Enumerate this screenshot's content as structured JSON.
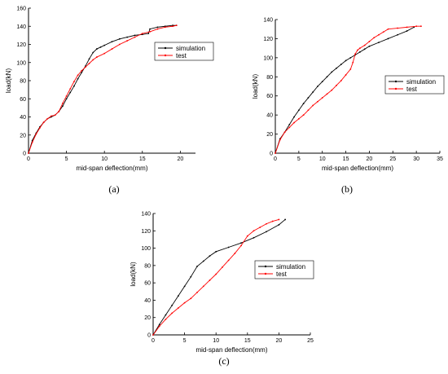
{
  "colors": {
    "simulation": "#000000",
    "test": "#ff0000"
  },
  "chart_data": [
    {
      "type": "line",
      "panel_label": "(a)",
      "xlabel": "mid-span deflection(mm)",
      "ylabel": "load(kN)",
      "xlim": [
        0,
        22
      ],
      "ylim": [
        0,
        160
      ],
      "xticks": [
        0,
        5,
        10,
        15,
        20
      ],
      "yticks": [
        0,
        20,
        40,
        60,
        80,
        100,
        120,
        140,
        160
      ],
      "legend_placement": "upper-right",
      "series": [
        {
          "name": "simulation",
          "color_key": "simulation",
          "x": [
            0,
            0.5,
            1,
            1.5,
            2,
            2.5,
            3,
            3.5,
            4,
            4.5,
            5,
            5.5,
            6,
            6.5,
            7,
            7.5,
            8,
            8.5,
            9,
            9.5,
            10,
            11,
            12,
            13,
            14,
            15,
            15.8,
            16,
            17,
            18,
            19,
            19.5
          ],
          "y": [
            0,
            14,
            22,
            29,
            34,
            38,
            40,
            42,
            46,
            52,
            60,
            67,
            74,
            82,
            89,
            96,
            104,
            111,
            115,
            117,
            119,
            123,
            126,
            128,
            130,
            131,
            132,
            137,
            139,
            140,
            141,
            141
          ]
        },
        {
          "name": "test",
          "color_key": "test",
          "x": [
            0,
            0.5,
            1,
            1.5,
            2,
            2.5,
            3,
            3.5,
            4,
            4.5,
            5,
            5.5,
            6,
            6.5,
            7,
            7.5,
            8,
            8.5,
            9,
            10,
            11,
            12,
            13,
            14,
            15,
            16,
            17,
            18,
            19,
            19.5
          ],
          "y": [
            0,
            12,
            21,
            28,
            34,
            38,
            41,
            42,
            46,
            55,
            63,
            71,
            79,
            86,
            91,
            95,
            99,
            103,
            106,
            110,
            115,
            120,
            124,
            128,
            132,
            134,
            137,
            139,
            140,
            141
          ]
        }
      ]
    },
    {
      "type": "line",
      "panel_label": "(b)",
      "xlabel": "mid-span deflection(mm)",
      "ylabel": "load(kN)",
      "xlim": [
        0,
        35
      ],
      "ylim": [
        0,
        140
      ],
      "xticks": [
        0,
        5,
        10,
        15,
        20,
        25,
        30,
        35
      ],
      "yticks": [
        0,
        20,
        40,
        60,
        80,
        100,
        120,
        140
      ],
      "legend_placement": "right",
      "series": [
        {
          "name": "simulation",
          "color_key": "simulation",
          "x": [
            0,
            1,
            2,
            3,
            4,
            5,
            6,
            7,
            8,
            9,
            10,
            11,
            12,
            13,
            14,
            15,
            16,
            17,
            18,
            19,
            20,
            22,
            24,
            26,
            28,
            29.5
          ],
          "y": [
            0,
            15,
            22,
            30,
            38,
            45,
            52,
            58,
            64,
            70,
            75,
            80,
            85,
            89,
            93,
            97,
            100,
            103,
            106,
            109,
            112,
            116,
            120,
            124,
            128,
            132
          ]
        },
        {
          "name": "test",
          "color_key": "test",
          "x": [
            0,
            1,
            2,
            3,
            4,
            5,
            6,
            7,
            8,
            9,
            10,
            11,
            12,
            13,
            14,
            15,
            16,
            16.5,
            17,
            17.5,
            18,
            19,
            20,
            21,
            22,
            23,
            24,
            26,
            28,
            30,
            31
          ],
          "y": [
            0,
            14,
            22,
            27,
            32,
            36,
            40,
            45,
            50,
            54,
            58,
            62,
            66,
            71,
            76,
            82,
            88,
            95,
            104,
            108,
            110,
            113,
            117,
            121,
            124,
            127,
            130,
            131,
            132,
            133,
            133
          ]
        }
      ]
    },
    {
      "type": "line",
      "panel_label": "(c)",
      "xlabel": "mid-span deflection(mm)",
      "ylabel": "load(kN)",
      "xlim": [
        0,
        25
      ],
      "ylim": [
        0,
        140
      ],
      "xticks": [
        0,
        5,
        10,
        15,
        20,
        25
      ],
      "yticks": [
        0,
        20,
        40,
        60,
        80,
        100,
        120,
        140
      ],
      "legend_placement": "center-right",
      "series": [
        {
          "name": "simulation",
          "color_key": "simulation",
          "x": [
            0,
            1,
            2,
            3,
            4,
            5,
            6,
            7,
            8,
            9,
            10,
            12,
            14,
            16,
            18,
            20,
            21
          ],
          "y": [
            0,
            12,
            23,
            34,
            45,
            56,
            67,
            79,
            85,
            91,
            96,
            101,
            106,
            112,
            119,
            127,
            133
          ]
        },
        {
          "name": "test",
          "color_key": "test",
          "x": [
            0,
            1,
            2,
            3,
            4,
            5,
            6,
            7,
            8,
            9,
            10,
            11,
            12,
            13,
            14,
            15,
            16,
            17,
            18,
            19,
            20
          ],
          "y": [
            0,
            10,
            18,
            25,
            31,
            37,
            42,
            49,
            56,
            63,
            70,
            78,
            86,
            94,
            103,
            114,
            120,
            124,
            128,
            131,
            133
          ]
        }
      ]
    }
  ]
}
